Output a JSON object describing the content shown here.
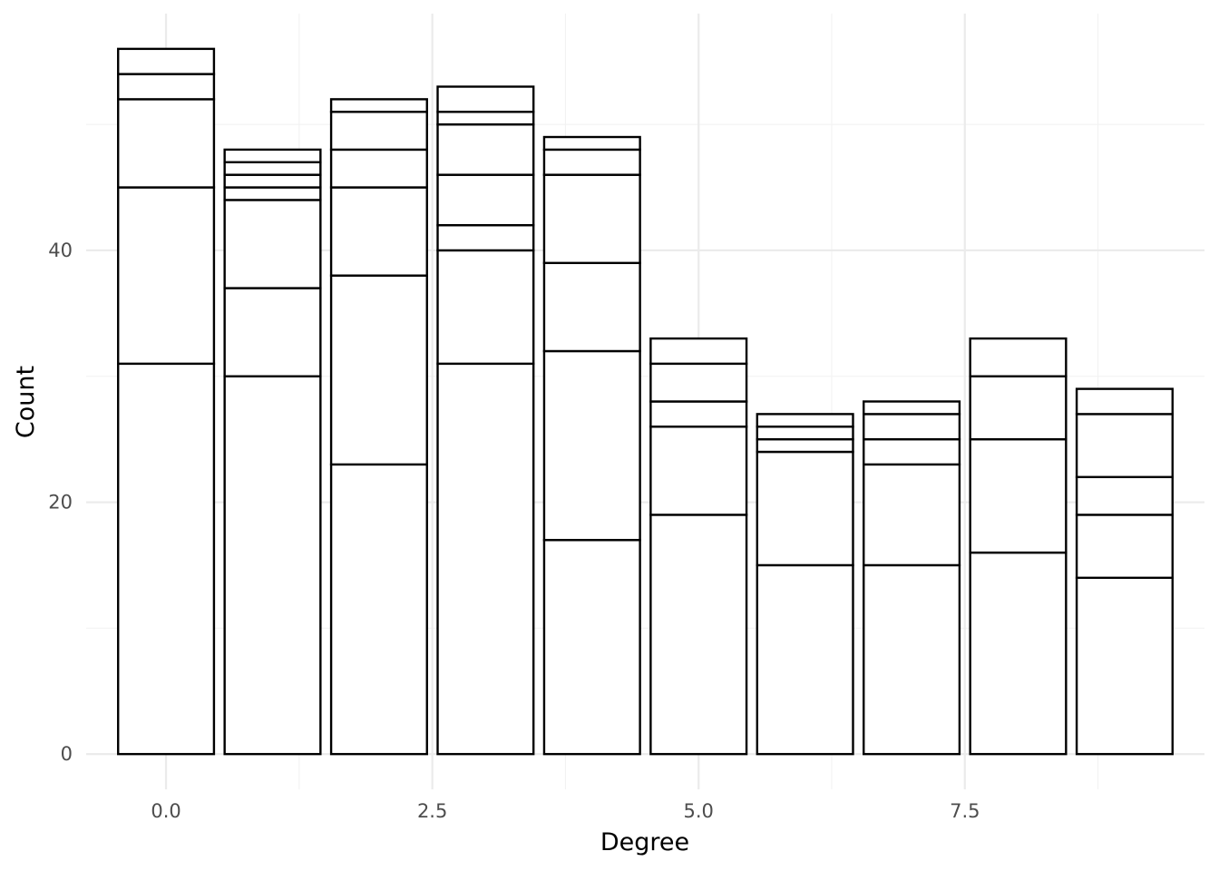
{
  "chart_data": {
    "type": "bar",
    "stacked": true,
    "xlabel": "Degree",
    "ylabel": "Count",
    "x": [
      0,
      1,
      2,
      3,
      4,
      5,
      6,
      7,
      8,
      9
    ],
    "xlim": [
      -0.75,
      9.75
    ],
    "ylim": [
      -2.8,
      58.8
    ],
    "x_ticks": [
      0.0,
      2.5,
      5.0,
      7.5
    ],
    "x_tick_labels": [
      "0.0",
      "2.5",
      "5.0",
      "7.5"
    ],
    "y_ticks": [
      0,
      20,
      40
    ],
    "y_tick_labels": [
      "0",
      "20",
      "40"
    ],
    "grid": true,
    "legend": "none",
    "fill_color": "#ffffff",
    "outline_color": "#000000",
    "stack_boundaries": [
      [
        31,
        45,
        52,
        54,
        56
      ],
      [
        30,
        37,
        44,
        45,
        46,
        47,
        48
      ],
      [
        23,
        38,
        45,
        48,
        51,
        52
      ],
      [
        31,
        40,
        42,
        46,
        50,
        51,
        53
      ],
      [
        17,
        32,
        39,
        46,
        48,
        49
      ],
      [
        19,
        26,
        28,
        31,
        33
      ],
      [
        15,
        24,
        25,
        26,
        27
      ],
      [
        15,
        23,
        25,
        27,
        28
      ],
      [
        16,
        25,
        30,
        33
      ],
      [
        14,
        19,
        22,
        27,
        29
      ]
    ],
    "totals": [
      56,
      48,
      52,
      53,
      49,
      33,
      27,
      28,
      33,
      29
    ]
  }
}
